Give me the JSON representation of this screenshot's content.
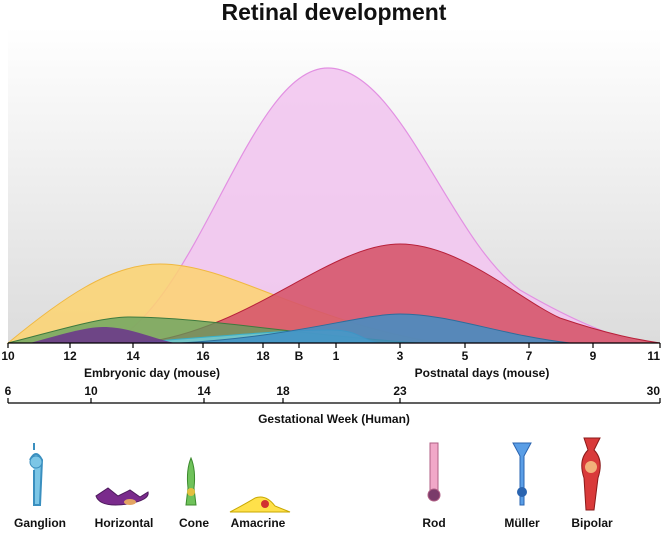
{
  "title": "Retinal development",
  "mouse_axis": {
    "ticks": [
      "10",
      "12",
      "14",
      "16",
      "18",
      "B",
      "1",
      "3",
      "5",
      "7",
      "9",
      "11"
    ],
    "embryonic_label": "Embryonic day (mouse)",
    "postnatal_label": "Postnatal days (mouse)"
  },
  "human_axis": {
    "ticks": [
      "6",
      "10",
      "14",
      "18",
      "23",
      "30"
    ],
    "label": "Gestational Week (Human)"
  },
  "cells": [
    "Ganglion",
    "Horizontal",
    "Cone",
    "Amacrine",
    "Rod",
    "Müller",
    "Bipolar"
  ]
}
